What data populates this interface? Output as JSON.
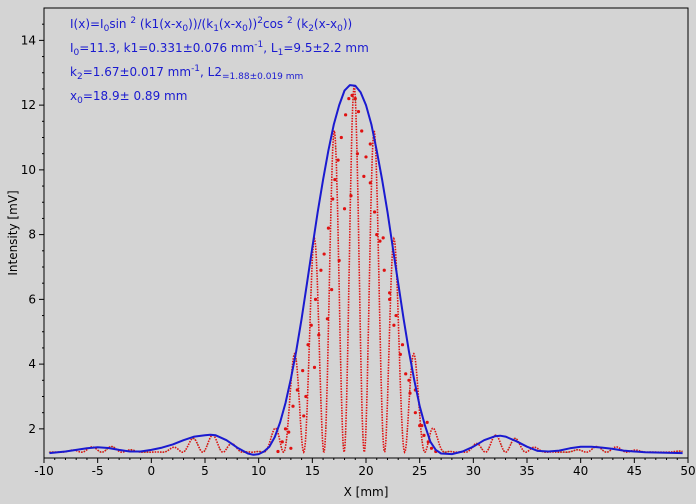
{
  "chart_data": {
    "type": "scatter",
    "title": "",
    "xlabel": "X [mm]",
    "ylabel": "Intensity [mV]",
    "xlim": [
      -10,
      50
    ],
    "ylim": [
      1.1,
      15.0
    ],
    "xticks": [
      -10,
      -5,
      0,
      5,
      10,
      15,
      20,
      25,
      30,
      35,
      40,
      45,
      50
    ],
    "yticks": [
      2,
      4,
      6,
      8,
      10,
      12,
      14
    ],
    "grid": false,
    "colors": {
      "fit": "#1a1ad0",
      "data": "#e01010",
      "faint": "#1a7a1a",
      "annotation": "#1a1ad0"
    },
    "annotations": [
      {
        "lines": [
          "I(x)=I",
          "0",
          "sin ",
          "2",
          " (k",
          "1",
          "(x-x",
          "0",
          "))/(k",
          "1",
          "(x-x",
          "0",
          "))",
          "2",
          "cos ",
          "2",
          " (k",
          "2",
          "(x-x",
          "0",
          "))"
        ]
      },
      {
        "lines": [
          "I",
          "0",
          "=11.3,  k",
          "1",
          "=0.331±0.076 mm",
          "-1",
          ",   L",
          "1",
          "=9.5±2.2 mm"
        ]
      },
      {
        "lines": [
          "k",
          "2",
          "=1.67±0.017 mm",
          "-1",
          ",   L",
          "2",
          "=1.88±0.019 mm"
        ]
      },
      {
        "lines": [
          "x",
          "0",
          "=18.9±  0.89 mm"
        ]
      }
    ],
    "model": {
      "I0": 11.3,
      "k1": 0.331,
      "k2": 1.67,
      "x0": 18.9,
      "offset": 1.28
    },
    "series": [
      {
        "kind": "envelope-line",
        "x": [
          -9.5,
          -8,
          -7,
          -6,
          -5,
          -4,
          -3,
          -2,
          -1,
          0,
          1,
          2,
          3,
          4,
          5,
          5.5,
          6,
          7,
          8,
          9,
          9.5,
          10,
          10.5,
          11,
          11.5,
          12,
          12.5,
          13,
          13.5,
          14,
          14.5,
          15,
          15.5,
          16,
          16.5,
          17,
          17.5,
          18,
          18.5,
          19,
          19.5,
          20,
          20.5,
          21,
          21.5,
          22,
          22.5,
          23,
          23.5,
          24,
          24.5,
          25,
          25.5,
          26,
          26.5,
          27,
          28,
          29,
          30,
          31,
          32,
          32.5,
          33,
          34,
          35,
          36,
          37,
          38,
          39,
          40,
          41,
          42,
          43,
          44,
          45,
          46,
          47,
          48,
          49.5
        ],
        "y": [
          1.25,
          1.3,
          1.35,
          1.4,
          1.43,
          1.41,
          1.35,
          1.3,
          1.3,
          1.35,
          1.42,
          1.52,
          1.65,
          1.76,
          1.8,
          1.82,
          1.8,
          1.65,
          1.42,
          1.24,
          1.2,
          1.22,
          1.3,
          1.45,
          1.75,
          2.2,
          2.8,
          3.55,
          4.4,
          5.4,
          6.5,
          7.6,
          8.7,
          9.7,
          10.6,
          11.4,
          12.0,
          12.45,
          12.62,
          12.6,
          12.4,
          12.0,
          11.4,
          10.6,
          9.7,
          8.7,
          7.6,
          6.5,
          5.4,
          4.4,
          3.5,
          2.7,
          2.1,
          1.6,
          1.35,
          1.24,
          1.22,
          1.3,
          1.45,
          1.65,
          1.77,
          1.79,
          1.76,
          1.62,
          1.45,
          1.32,
          1.3,
          1.33,
          1.4,
          1.45,
          1.45,
          1.42,
          1.38,
          1.33,
          1.3,
          1.28,
          1.27,
          1.26,
          1.25
        ]
      },
      {
        "kind": "oscillating-line",
        "x_start": -9.5,
        "x_end": 49.5,
        "period": 3.76
      },
      {
        "kind": "points",
        "x": [
          12.2,
          12.5,
          13.2,
          13.6,
          14.1,
          14.6,
          14.9,
          15.3,
          15.8,
          16.1,
          16.5,
          16.9,
          17.1,
          17.4,
          17.7,
          18.1,
          18.4,
          18.7,
          19.0,
          19.3,
          19.6,
          20.0,
          20.4,
          20.8,
          21.3,
          21.7,
          22.2,
          22.6,
          23.2,
          23.7,
          24.1,
          24.6,
          25.0,
          25.4,
          25.8,
          26.1,
          13.0,
          14.2,
          15.2,
          16.4,
          17.5,
          18.6,
          19.8,
          21.0,
          22.2,
          23.4,
          24.6,
          25.7,
          12.8,
          14.4,
          15.6,
          16.8,
          18.0,
          19.2,
          20.4,
          21.6,
          22.8,
          24.0,
          25.2,
          11.8,
          26.5
        ],
        "y": [
          1.6,
          2.0,
          2.7,
          3.2,
          3.8,
          4.6,
          5.2,
          6.0,
          6.9,
          7.4,
          8.2,
          9.1,
          9.7,
          10.3,
          11.0,
          11.7,
          12.2,
          12.3,
          12.2,
          11.8,
          11.2,
          10.4,
          9.6,
          8.7,
          7.8,
          6.9,
          6.0,
          5.2,
          4.3,
          3.7,
          3.1,
          2.5,
          2.1,
          1.8,
          1.6,
          1.4,
          1.4,
          2.4,
          3.9,
          5.4,
          7.2,
          9.2,
          9.8,
          8.0,
          6.2,
          4.6,
          3.2,
          2.2,
          1.9,
          3.0,
          4.9,
          6.3,
          8.8,
          10.5,
          10.8,
          7.9,
          5.5,
          3.5,
          2.1,
          1.3,
          1.3
        ]
      }
    ]
  }
}
